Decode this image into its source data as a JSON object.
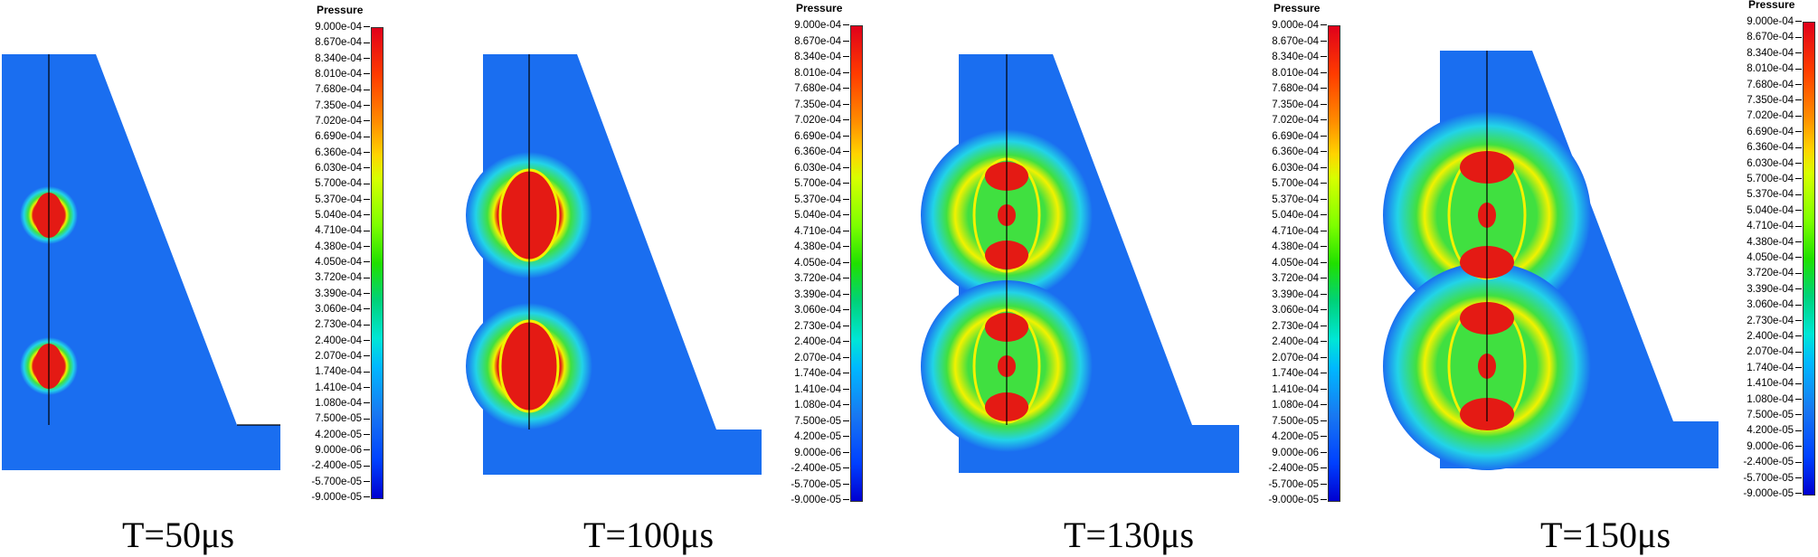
{
  "colorbar": {
    "title": "Pressure",
    "ticks": [
      "9.000e-04",
      "8.670e-04",
      "8.340e-04",
      "8.010e-04",
      "7.680e-04",
      "7.350e-04",
      "7.020e-04",
      "6.690e-04",
      "6.360e-04",
      "6.030e-04",
      "5.700e-04",
      "5.370e-04",
      "5.040e-04",
      "4.710e-04",
      "4.380e-04",
      "4.050e-04",
      "3.720e-04",
      "3.390e-04",
      "3.060e-04",
      "2.730e-04",
      "2.400e-04",
      "2.070e-04",
      "1.740e-04",
      "1.410e-04",
      "1.080e-04",
      "7.500e-05",
      "4.200e-05",
      "9.000e-06",
      "-2.400e-05",
      "-5.700e-05",
      "-9.000e-05"
    ]
  },
  "panels": [
    {
      "time_label": "T=50μs"
    },
    {
      "time_label": "T=100μs"
    },
    {
      "time_label": "T=130μs"
    },
    {
      "time_label": "T=150μs"
    }
  ],
  "colors": {
    "background_field": "#1a6ef0",
    "high_pressure": "#e41a14",
    "shell": "#f2f200",
    "green": "#40e040",
    "cyan": "#22d3e8"
  }
}
